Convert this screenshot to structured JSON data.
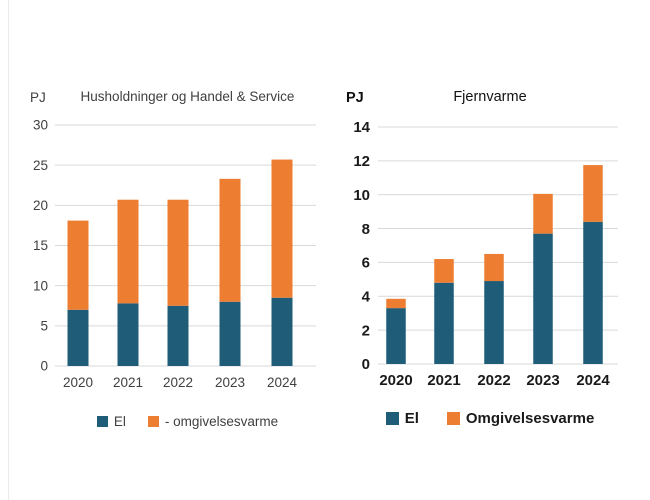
{
  "style": {
    "background": "#ffffff",
    "gridline_color": "#D9D9D9",
    "left_chart_text_color": "#404040",
    "right_chart_text_color": "#1a1a1a",
    "el_color": "#1F5C78",
    "omgivelsesvarme_color": "#ED7D31"
  },
  "chart_data": [
    {
      "id": "husholdninger",
      "type": "bar",
      "stacked": true,
      "title": "Husholdninger og Handel & Service",
      "ylabel": "PJ",
      "xlabel": "",
      "categories": [
        "2020",
        "2021",
        "2022",
        "2023",
        "2024"
      ],
      "series": [
        {
          "key": "el",
          "name": "El",
          "color": "#1F5C78",
          "values": [
            7.0,
            7.8,
            7.5,
            8.0,
            8.5
          ]
        },
        {
          "key": "omgivelsesvarme",
          "name": "- omgivelsesvarme",
          "color": "#ED7D31",
          "values": [
            11.1,
            12.9,
            13.2,
            15.3,
            17.2
          ]
        }
      ],
      "totals": [
        18.1,
        20.7,
        20.7,
        23.3,
        25.7
      ],
      "ylim": [
        0,
        30
      ],
      "yticks": [
        0,
        5,
        10,
        15,
        20,
        25,
        30
      ],
      "grid": true,
      "legend_position": "bottom"
    },
    {
      "id": "fjernvarme",
      "type": "bar",
      "stacked": true,
      "title": "Fjernvarme",
      "ylabel": "PJ",
      "xlabel": "",
      "categories": [
        "2020",
        "2021",
        "2022",
        "2023",
        "2024"
      ],
      "series": [
        {
          "key": "el",
          "name": "El",
          "color": "#1F5C78",
          "values": [
            3.3,
            4.8,
            4.9,
            7.7,
            8.4
          ]
        },
        {
          "key": "omgivelsesvarme",
          "name": "Omgivelsesvarme",
          "color": "#ED7D31",
          "values": [
            0.55,
            1.4,
            1.6,
            2.35,
            3.35
          ]
        }
      ],
      "totals": [
        3.85,
        6.2,
        6.5,
        10.05,
        11.75
      ],
      "ylim": [
        0,
        14
      ],
      "yticks": [
        0,
        2,
        4,
        6,
        8,
        10,
        12,
        14
      ],
      "grid": true,
      "legend_position": "bottom"
    }
  ]
}
